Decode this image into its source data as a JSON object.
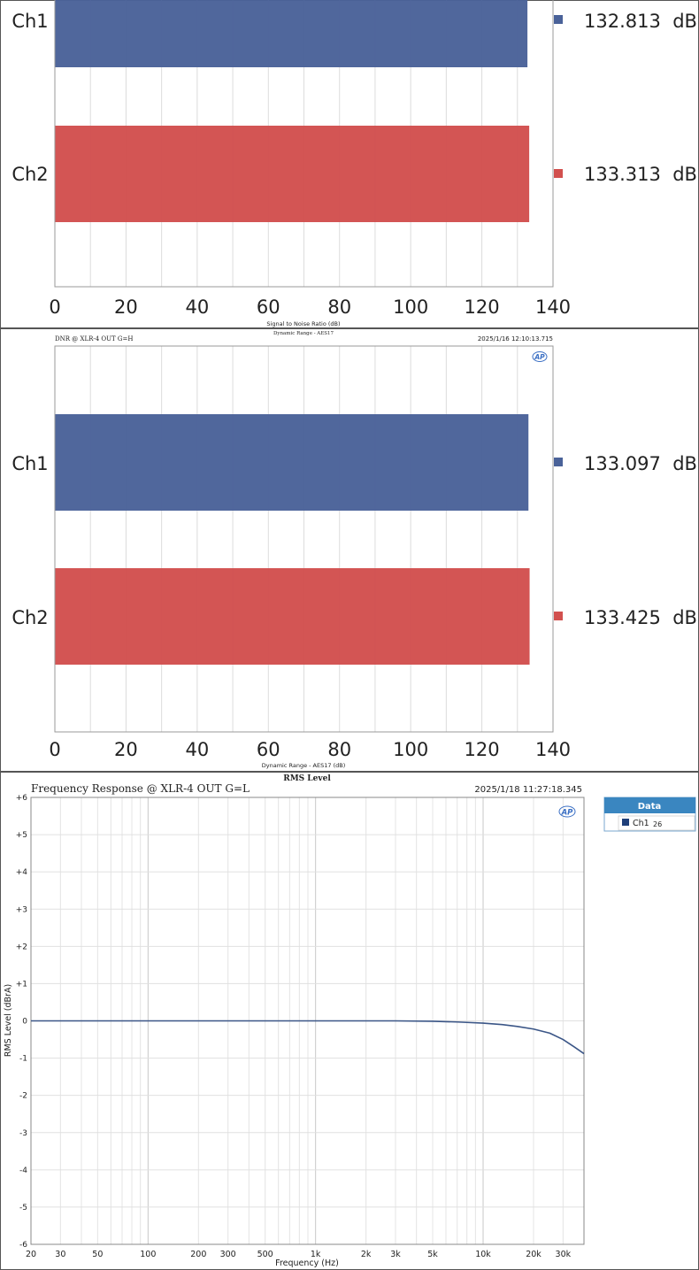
{
  "colors": {
    "ch1": "#4a6299",
    "ch2": "#d2504e",
    "fr_line": "#3b5687",
    "grid": "#dcdcdc",
    "legend_header": "#3a86c0"
  },
  "chart_data": [
    {
      "type": "bar",
      "orientation": "horizontal",
      "title": "",
      "subtitle": "",
      "xlabel": "Signal to Noise Ratio (dB)",
      "xlim": [
        0,
        140
      ],
      "xticks": [
        "0",
        "20",
        "40",
        "60",
        "80",
        "100",
        "120",
        "140"
      ],
      "categories": [
        "Ch1",
        "Ch2"
      ],
      "values": [
        132.813,
        133.313
      ],
      "value_labels": [
        "132.813  dB",
        "133.313  dB"
      ]
    },
    {
      "type": "bar",
      "orientation": "horizontal",
      "title": "DNR @ XLR-4 OUT G=H",
      "subtitle": "Dynamic Range - AES17",
      "timestamp": "2025/1/16 12:10:13.715",
      "logo": "AP",
      "xlabel": "Dynamic Range - AES17 (dB)",
      "xlim": [
        0,
        140
      ],
      "xticks": [
        "0",
        "20",
        "40",
        "60",
        "80",
        "100",
        "120",
        "140"
      ],
      "categories": [
        "Ch1",
        "Ch2"
      ],
      "values": [
        133.097,
        133.425
      ],
      "value_labels": [
        "133.097  dB",
        "133.425  dB"
      ]
    },
    {
      "type": "line",
      "title": "Frequency Response @ XLR-4 OUT G=L",
      "subtitle": "RMS Level",
      "timestamp": "2025/1/18 11:27:18.345",
      "logo": "AP",
      "xlabel": "Frequency (Hz)",
      "ylabel": "RMS Level (dBrA)",
      "xscale": "log",
      "xlim": [
        20,
        40000
      ],
      "ylim": [
        -6,
        6
      ],
      "xticks": [
        {
          "v": 20,
          "label": "20"
        },
        {
          "v": 30,
          "label": "30"
        },
        {
          "v": 50,
          "label": "50"
        },
        {
          "v": 100,
          "label": "100"
        },
        {
          "v": 200,
          "label": "200"
        },
        {
          "v": 300,
          "label": "300"
        },
        {
          "v": 500,
          "label": "500"
        },
        {
          "v": 1000,
          "label": "1k"
        },
        {
          "v": 2000,
          "label": "2k"
        },
        {
          "v": 3000,
          "label": "3k"
        },
        {
          "v": 5000,
          "label": "5k"
        },
        {
          "v": 10000,
          "label": "10k"
        },
        {
          "v": 20000,
          "label": "20k"
        },
        {
          "v": 30000,
          "label": "30k"
        }
      ],
      "yticks": [
        {
          "v": 6,
          "label": "+6"
        },
        {
          "v": 5,
          "label": "+5"
        },
        {
          "v": 4,
          "label": "+4"
        },
        {
          "v": 3,
          "label": "+3"
        },
        {
          "v": 2,
          "label": "+2"
        },
        {
          "v": 1,
          "label": "+1"
        },
        {
          "v": 0,
          "label": "0"
        },
        {
          "v": -1,
          "label": "-1"
        },
        {
          "v": -2,
          "label": "-2"
        },
        {
          "v": -3,
          "label": "-3"
        },
        {
          "v": -4,
          "label": "-4"
        },
        {
          "v": -5,
          "label": "-5"
        },
        {
          "v": -6,
          "label": "-6"
        }
      ],
      "legend": {
        "title": "Data",
        "entries": [
          {
            "name": "Ch1",
            "suffix": "26"
          }
        ],
        "placement": "outside-right-top"
      },
      "series": [
        {
          "name": "Ch1",
          "x": [
            20,
            50,
            100,
            500,
            1000,
            3000,
            5000,
            7000,
            10000,
            13000,
            16000,
            20000,
            25000,
            30000,
            35000,
            40000
          ],
          "y": [
            0,
            0,
            0,
            0,
            0,
            0,
            -0.01,
            -0.03,
            -0.06,
            -0.1,
            -0.15,
            -0.22,
            -0.33,
            -0.5,
            -0.7,
            -0.88
          ]
        }
      ]
    }
  ]
}
